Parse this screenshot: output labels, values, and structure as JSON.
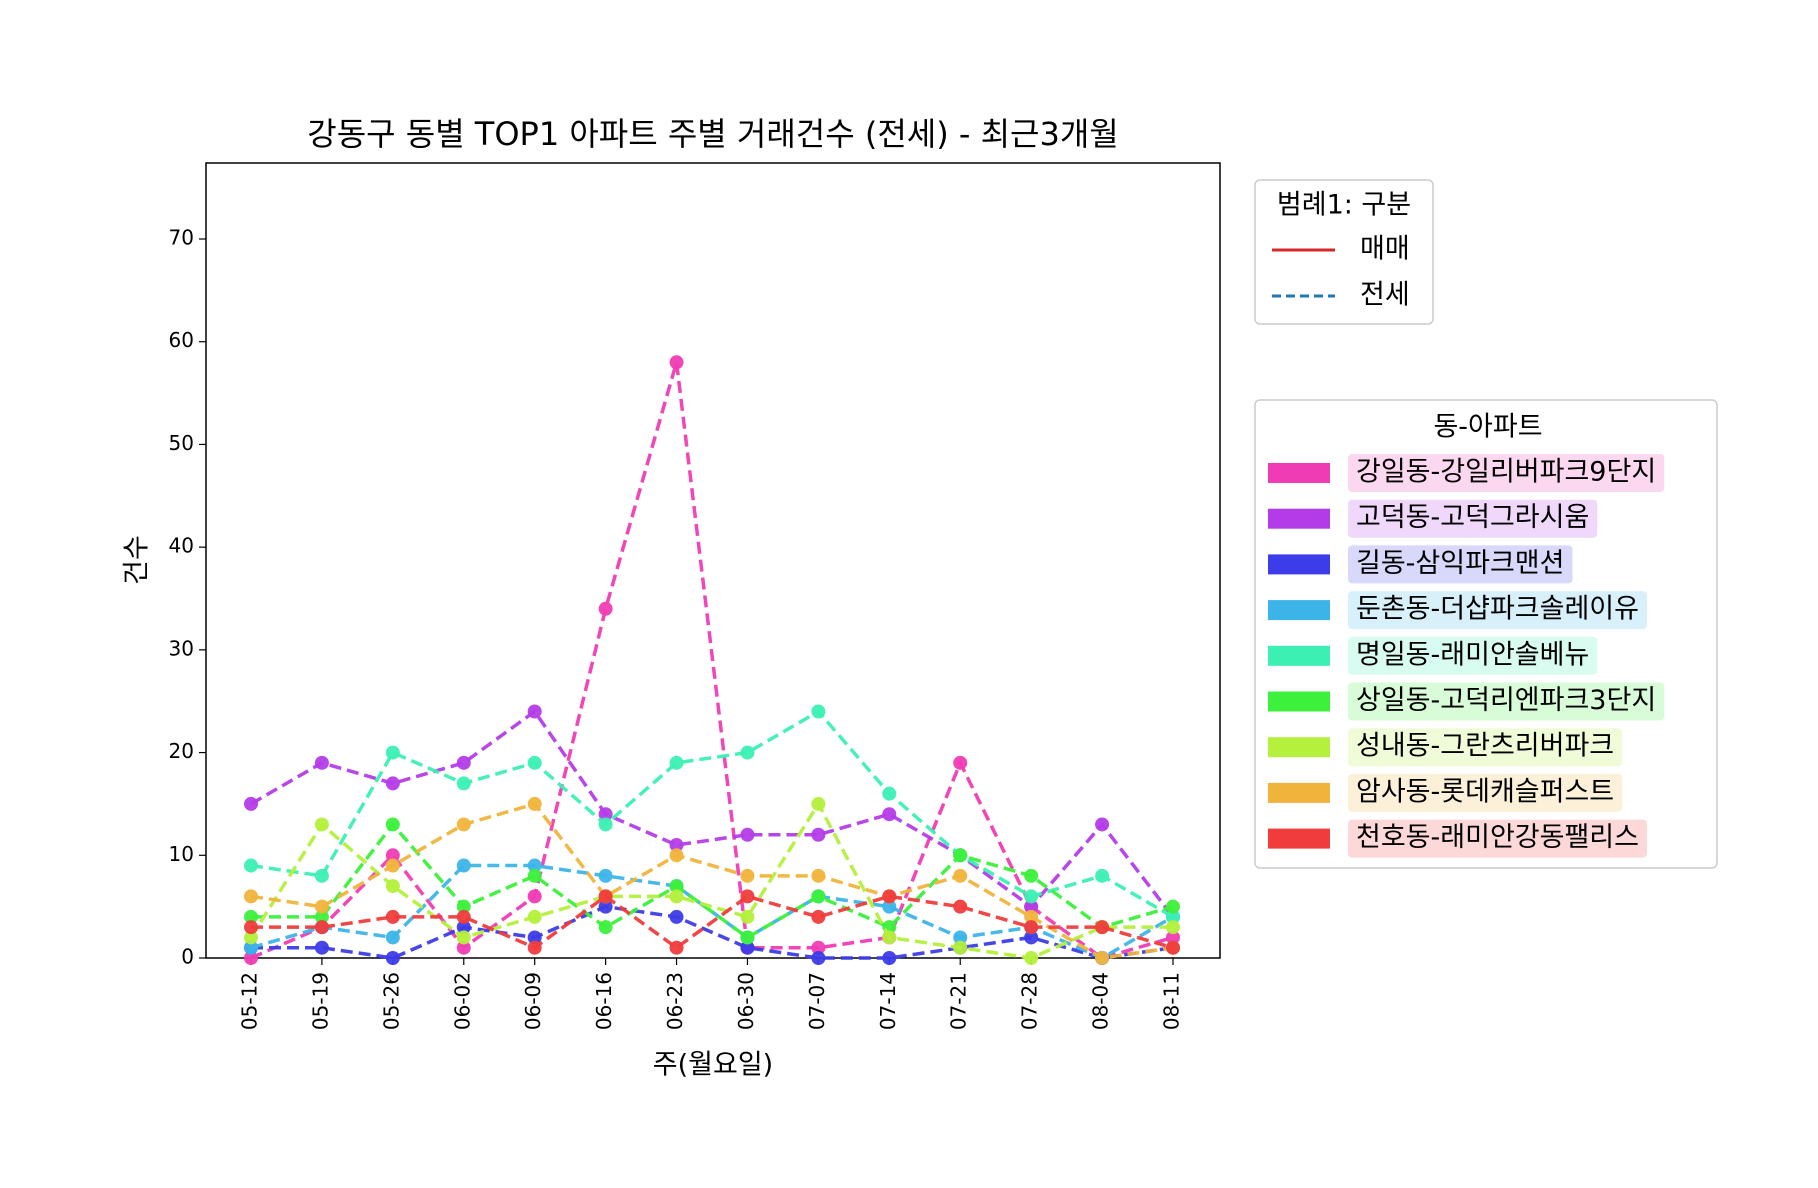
{
  "chart_data": {
    "type": "line",
    "title": "강동구 동별 TOP1 아파트 주별 거래건수 (전세) - 최근3개월",
    "xlabel": "주(월요일)",
    "ylabel": "건수",
    "categories": [
      "05-12",
      "05-19",
      "05-26",
      "06-02",
      "06-09",
      "06-16",
      "06-23",
      "06-30",
      "07-07",
      "07-14",
      "07-21",
      "07-28",
      "08-04",
      "08-11"
    ],
    "ylim": [
      0,
      77.4
    ],
    "yticks": [
      0,
      10,
      20,
      30,
      40,
      50,
      60,
      70
    ],
    "linestyle": "dashed",
    "series": [
      {
        "name": "강일동-강일리버파크9단지",
        "color": "#f03cb4",
        "values": [
          0,
          3,
          10,
          1,
          6,
          34,
          58,
          1,
          1,
          2,
          19,
          5,
          0,
          2
        ]
      },
      {
        "name": "고덕동-고덕그라시움",
        "color": "#b43ce8",
        "values": [
          15,
          19,
          17,
          19,
          24,
          14,
          11,
          12,
          12,
          14,
          10,
          5,
          13,
          4
        ]
      },
      {
        "name": "길동-삼익파크맨션",
        "color": "#3c3ce8",
        "values": [
          1,
          1,
          0,
          3,
          2,
          5,
          4,
          1,
          0,
          0,
          1,
          2,
          0,
          1
        ]
      },
      {
        "name": "둔촌동-더샵파크솔레이유",
        "color": "#3cb4e8",
        "values": [
          1,
          3,
          2,
          9,
          9,
          8,
          7,
          2,
          6,
          5,
          2,
          3,
          0,
          4
        ]
      },
      {
        "name": "명일동-래미안솔베뉴",
        "color": "#3cf0b4",
        "values": [
          9,
          8,
          20,
          17,
          19,
          13,
          19,
          20,
          24,
          16,
          10,
          6,
          8,
          4
        ]
      },
      {
        "name": "상일동-고덕리엔파크3단지",
        "color": "#3cf03c",
        "values": [
          4,
          4,
          13,
          5,
          8,
          3,
          7,
          2,
          6,
          3,
          10,
          8,
          3,
          5
        ]
      },
      {
        "name": "성내동-그란츠리버파크",
        "color": "#b4f03c",
        "values": [
          2,
          13,
          7,
          2,
          4,
          6,
          6,
          4,
          15,
          2,
          1,
          0,
          3,
          3
        ]
      },
      {
        "name": "암사동-롯데캐슬퍼스트",
        "color": "#f0b43c",
        "values": [
          6,
          5,
          9,
          13,
          15,
          6,
          10,
          8,
          8,
          6,
          8,
          4,
          0,
          1
        ]
      },
      {
        "name": "천호동-래미안강동팰리스",
        "color": "#f03c3c",
        "values": [
          3,
          3,
          4,
          4,
          1,
          6,
          1,
          6,
          4,
          6,
          5,
          3,
          3,
          1
        ]
      }
    ],
    "legend_title": "동-아파트",
    "style_legend": {
      "title": "범례1: 구분",
      "entries": [
        {
          "label": "매매",
          "color": "#d62728",
          "linestyle": "solid"
        },
        {
          "label": "전세",
          "color": "#1f77b4",
          "linestyle": "dashed"
        }
      ]
    }
  }
}
